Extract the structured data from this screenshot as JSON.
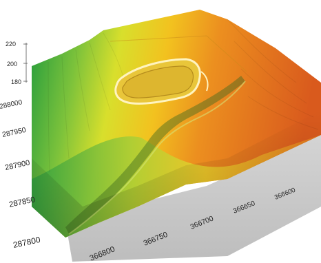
{
  "chart_data": {
    "type": "surface",
    "title": "",
    "colors": {
      "low": "#1e9a3c",
      "mid_low": "#8cc83c",
      "mid": "#e6dc28",
      "mid_high": "#f0b41e",
      "high": "#e0641e",
      "base_side": "#c8c8c8"
    },
    "z_axis": {
      "label": "",
      "ticks": [
        "220",
        "200",
        "180"
      ],
      "range": [
        180,
        220
      ]
    },
    "y_axis": {
      "label": "",
      "ticks": [
        "288000",
        "287950",
        "287900",
        "287850",
        "287800"
      ],
      "range": [
        287800,
        288000
      ]
    },
    "x_axis": {
      "label": "",
      "ticks": [
        "366800",
        "366750",
        "366700",
        "366650",
        "366600"
      ],
      "range": [
        366600,
        366800
      ]
    },
    "features": [
      "rectangular earthwork enclosure on upper plateau",
      "steep wooded scarp along left flank"
    ]
  }
}
